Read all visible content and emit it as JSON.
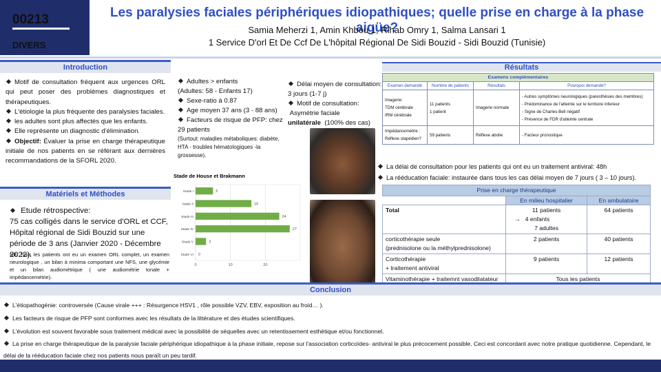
{
  "header": {
    "number": "00213",
    "category": "DIVERS",
    "title": "Les paralysies faciales périphériques idiopathiques; quelle prise en charge à la phase aigüe?",
    "authors": "Samia Meherzi 1, Amin Khbou 1, Rihab Omry 1, Salma Lansari 1",
    "affiliation": "1 Service D'orl Et De Ccf De L'hôpital Régional De Sidi Bouzid - Sidi Bouzid (Tunisie)"
  },
  "introduction": {
    "heading": "Introduction",
    "items": [
      "Motif de consultation fréquent aux urgences ORL qui peut poser des problèmes diagnostiques et thérapeutiques.",
      "L'étiologie la plus fréquente des paralysies faciales.",
      "les adultes  sont plus affectés que  les enfants.",
      "Elle représente un diagnostic d'élimination."
    ],
    "objective": {
      "label": "Objectif:",
      "text": "Évaluer la prise en charge thérapeutique initiale de nos patients en se référant aux dernières recommandations de la SFORL 2020."
    }
  },
  "methods": {
    "heading": "Matériels et Méthodes",
    "study": "Etude rétrospective:",
    "cases": "75 cas colligés dans le  service d'ORL et CCF, Hôpital régional de Sidi Bouzid sur une période de 3 ans (Janvier 2020 - Décembre 2022).",
    "note": "NB: Tous les patients ont eu un examen ORL complet, un examen neurologique , un bilan à minima comportant une NFS, une glycémie et un bilan audiométrique ( une audiométrie tonale + impédancemétrie)."
  },
  "demographics": {
    "adults": "Adultes > enfants",
    "counts": "(Adultes: 58 - Enfants 17)",
    "sex_ratio": "Sexe-ratio à 0.87",
    "age": "Age moyen 37 ans (3 - 88 ans)",
    "risk": "Facteurs de risque de PFP: chez 29 patients",
    "risk_note": "(Surtout: maladies métaboliques:  diabète, HTA -  troubles hématologiques  -la grossesse)."
  },
  "consultation": {
    "delay": "Délai moyen de consultation: 3 jours (1-7 j)",
    "reason": "Motif de consultation:",
    "reason_text": "Asymétrie faciale",
    "reason_bold": "unilatérale",
    "reason_share": "(100% des cas)"
  },
  "chart_data": {
    "type": "bar",
    "orientation": "horizontal",
    "title": "Stade de House et Brakmann",
    "categories": [
      "Stade I",
      "Stade II",
      "Stade III",
      "Stade IV",
      "Stade V",
      "Stade VI"
    ],
    "values": [
      5,
      16,
      24,
      27,
      3,
      0
    ],
    "color": "#70ad47",
    "xlim": [
      0,
      30
    ],
    "xticks": [
      0,
      10,
      20
    ],
    "grid": true
  },
  "results": {
    "heading": "Résultats",
    "exams": {
      "title": "Examens complémentaires",
      "headers": [
        "Examen demandé",
        "Nombre de patients",
        "Résultats",
        "Pourquoi demandé?"
      ],
      "rows": [
        [
          [
            "Imagerie:",
            "TDM cérébrale",
            "IRM cérébrale"
          ],
          [
            "11 patients",
            "1 patient"
          ],
          [
            "Imagerie normale"
          ],
          [
            "- Autres symptômes neurologiques (paresthésies des membres)",
            "- Prédominance de l'atteinte  sur le territoire inferieur",
            "- Signe de Charles-Bell négatif",
            "- Présence de FDR d'atteinte centrale"
          ]
        ],
        [
          [
            "Impédancemétrie :",
            "Réflexe stapédien?"
          ],
          [
            "59 patients"
          ],
          [
            "Réflexe abolie"
          ],
          [
            "- Facteur pronostique"
          ]
        ]
      ]
    },
    "notes": [
      "La délai de consultation pour les patients qui ont eu un traitement antiviral: 48h",
      "La rééducation faciale:  instaurée dans tous les cas délai moyen de 7 jours ( 3 – 10 jours)."
    ],
    "treatment": {
      "title": "Prise en charge thérapeutique",
      "headers": [
        "En milieu hospitalier",
        "En ambulatoire"
      ],
      "rows": [
        [
          [
            "Total"
          ],
          [
            "11 patients",
            "4 enfants",
            "7 adultes"
          ],
          [
            "64 patients"
          ]
        ],
        [
          [
            "corticothérapie seule",
            "(prednisolone ou la méthylprednisolone)"
          ],
          [
            "2 patients"
          ],
          [
            "40 patients"
          ]
        ],
        [
          [
            "Corticothérapie",
            "+ traitement antiviral"
          ],
          [
            "9 patients"
          ],
          [
            "12 patients"
          ]
        ]
      ],
      "last": [
        "Vitaminothérapie + traitemnt vasodilatateur",
        "Tous les patients"
      ]
    }
  },
  "conclusion": {
    "heading": "Conclusion",
    "items": [
      "L'étiopathogénie: controversée (Cause virale +++ : Résurgence HSV1 , rôle possible VZV, EBV, exposition au froid… ).",
      "Les facteurs de risque  de PFP sont conformes avec les résultats de la littérature et des études scientifiques.",
      "L'évolution  est souvent favorable sous traitement médical avec la possibilité de séquelles avec un retentissement esthétique  et/ou fonctionnel.",
      "La prise en charge thérapeutique de la paralysie faciale périphérique idiopathique à la phase initiale, repose sur l'association corticoïdes- antiviral le plus précocement possible. Ceci est concordant avec notre pratique quotidienne. Cependant, le délai de la rééducation faciale chez nos patients nous paraît un peu tardif."
    ]
  }
}
